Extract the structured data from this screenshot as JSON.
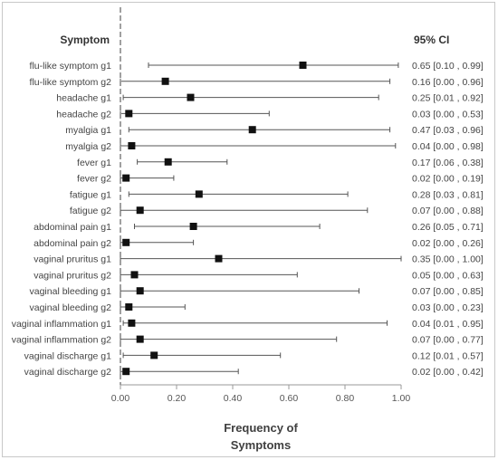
{
  "chart_data": {
    "type": "forest",
    "row_header": "Symptom",
    "ci_header": "95% CI",
    "xlabel_line1": "Frequency of",
    "xlabel_line2": "Symptoms",
    "xlim": [
      0,
      1
    ],
    "xticks": [
      "0.00",
      "0.20",
      "0.40",
      "0.60",
      "0.80",
      "1.00"
    ],
    "xtick_values": [
      0,
      0.2,
      0.4,
      0.6,
      0.8,
      1.0
    ],
    "reference_line": 0,
    "colors": {
      "marker": "#111111",
      "ci_line": "#555555",
      "reference": "#a0a0a0",
      "axis": "#999999"
    },
    "rows": [
      {
        "label": "flu-like symptom g1",
        "estimate": 0.65,
        "lower": 0.1,
        "upper": 0.99,
        "ci_text": "0.65 [0.10 , 0.99]"
      },
      {
        "label": "flu-like symptom g2",
        "estimate": 0.16,
        "lower": 0.0,
        "upper": 0.96,
        "ci_text": "0.16 [0.00 , 0.96]"
      },
      {
        "label": "headache g1",
        "estimate": 0.25,
        "lower": 0.01,
        "upper": 0.92,
        "ci_text": "0.25 [0.01 , 0.92]"
      },
      {
        "label": "headache g2",
        "estimate": 0.03,
        "lower": 0.0,
        "upper": 0.53,
        "ci_text": "0.03 [0.00 , 0.53]"
      },
      {
        "label": "myalgia g1",
        "estimate": 0.47,
        "lower": 0.03,
        "upper": 0.96,
        "ci_text": "0.47 [0.03 , 0.96]"
      },
      {
        "label": "myalgia g2",
        "estimate": 0.04,
        "lower": 0.0,
        "upper": 0.98,
        "ci_text": "0.04 [0.00 , 0.98]"
      },
      {
        "label": "fever g1",
        "estimate": 0.17,
        "lower": 0.06,
        "upper": 0.38,
        "ci_text": "0.17 [0.06 , 0.38]"
      },
      {
        "label": "fever g2",
        "estimate": 0.02,
        "lower": 0.0,
        "upper": 0.19,
        "ci_text": "0.02 [0.00 , 0.19]"
      },
      {
        "label": "fatigue g1",
        "estimate": 0.28,
        "lower": 0.03,
        "upper": 0.81,
        "ci_text": "0.28 [0.03 , 0.81]"
      },
      {
        "label": "fatigue g2",
        "estimate": 0.07,
        "lower": 0.0,
        "upper": 0.88,
        "ci_text": "0.07 [0.00 , 0.88]"
      },
      {
        "label": "abdominal pain g1",
        "estimate": 0.26,
        "lower": 0.05,
        "upper": 0.71,
        "ci_text": "0.26 [0.05 , 0.71]"
      },
      {
        "label": "abdominal pain g2",
        "estimate": 0.02,
        "lower": 0.0,
        "upper": 0.26,
        "ci_text": "0.02 [0.00 , 0.26]"
      },
      {
        "label": "vaginal pruritus g1",
        "estimate": 0.35,
        "lower": 0.0,
        "upper": 1.0,
        "ci_text": "0.35 [0.00 , 1.00]"
      },
      {
        "label": "vaginal pruritus g2",
        "estimate": 0.05,
        "lower": 0.0,
        "upper": 0.63,
        "ci_text": "0.05 [0.00 , 0.63]"
      },
      {
        "label": "vaginal bleeding g1",
        "estimate": 0.07,
        "lower": 0.0,
        "upper": 0.85,
        "ci_text": "0.07 [0.00 , 0.85]"
      },
      {
        "label": "vaginal bleeding g2",
        "estimate": 0.03,
        "lower": 0.0,
        "upper": 0.23,
        "ci_text": "0.03 [0.00 , 0.23]"
      },
      {
        "label": "vaginal inflammation g1",
        "estimate": 0.04,
        "lower": 0.01,
        "upper": 0.95,
        "ci_text": "0.04 [0.01 , 0.95]"
      },
      {
        "label": "vaginal inflammation g2",
        "estimate": 0.07,
        "lower": 0.0,
        "upper": 0.77,
        "ci_text": "0.07 [0.00 , 0.77]"
      },
      {
        "label": "vaginal discharge g1",
        "estimate": 0.12,
        "lower": 0.01,
        "upper": 0.57,
        "ci_text": "0.12 [0.01 , 0.57]"
      },
      {
        "label": "vaginal discharge g2",
        "estimate": 0.02,
        "lower": 0.0,
        "upper": 0.42,
        "ci_text": "0.02 [0.00 , 0.42]"
      }
    ]
  }
}
